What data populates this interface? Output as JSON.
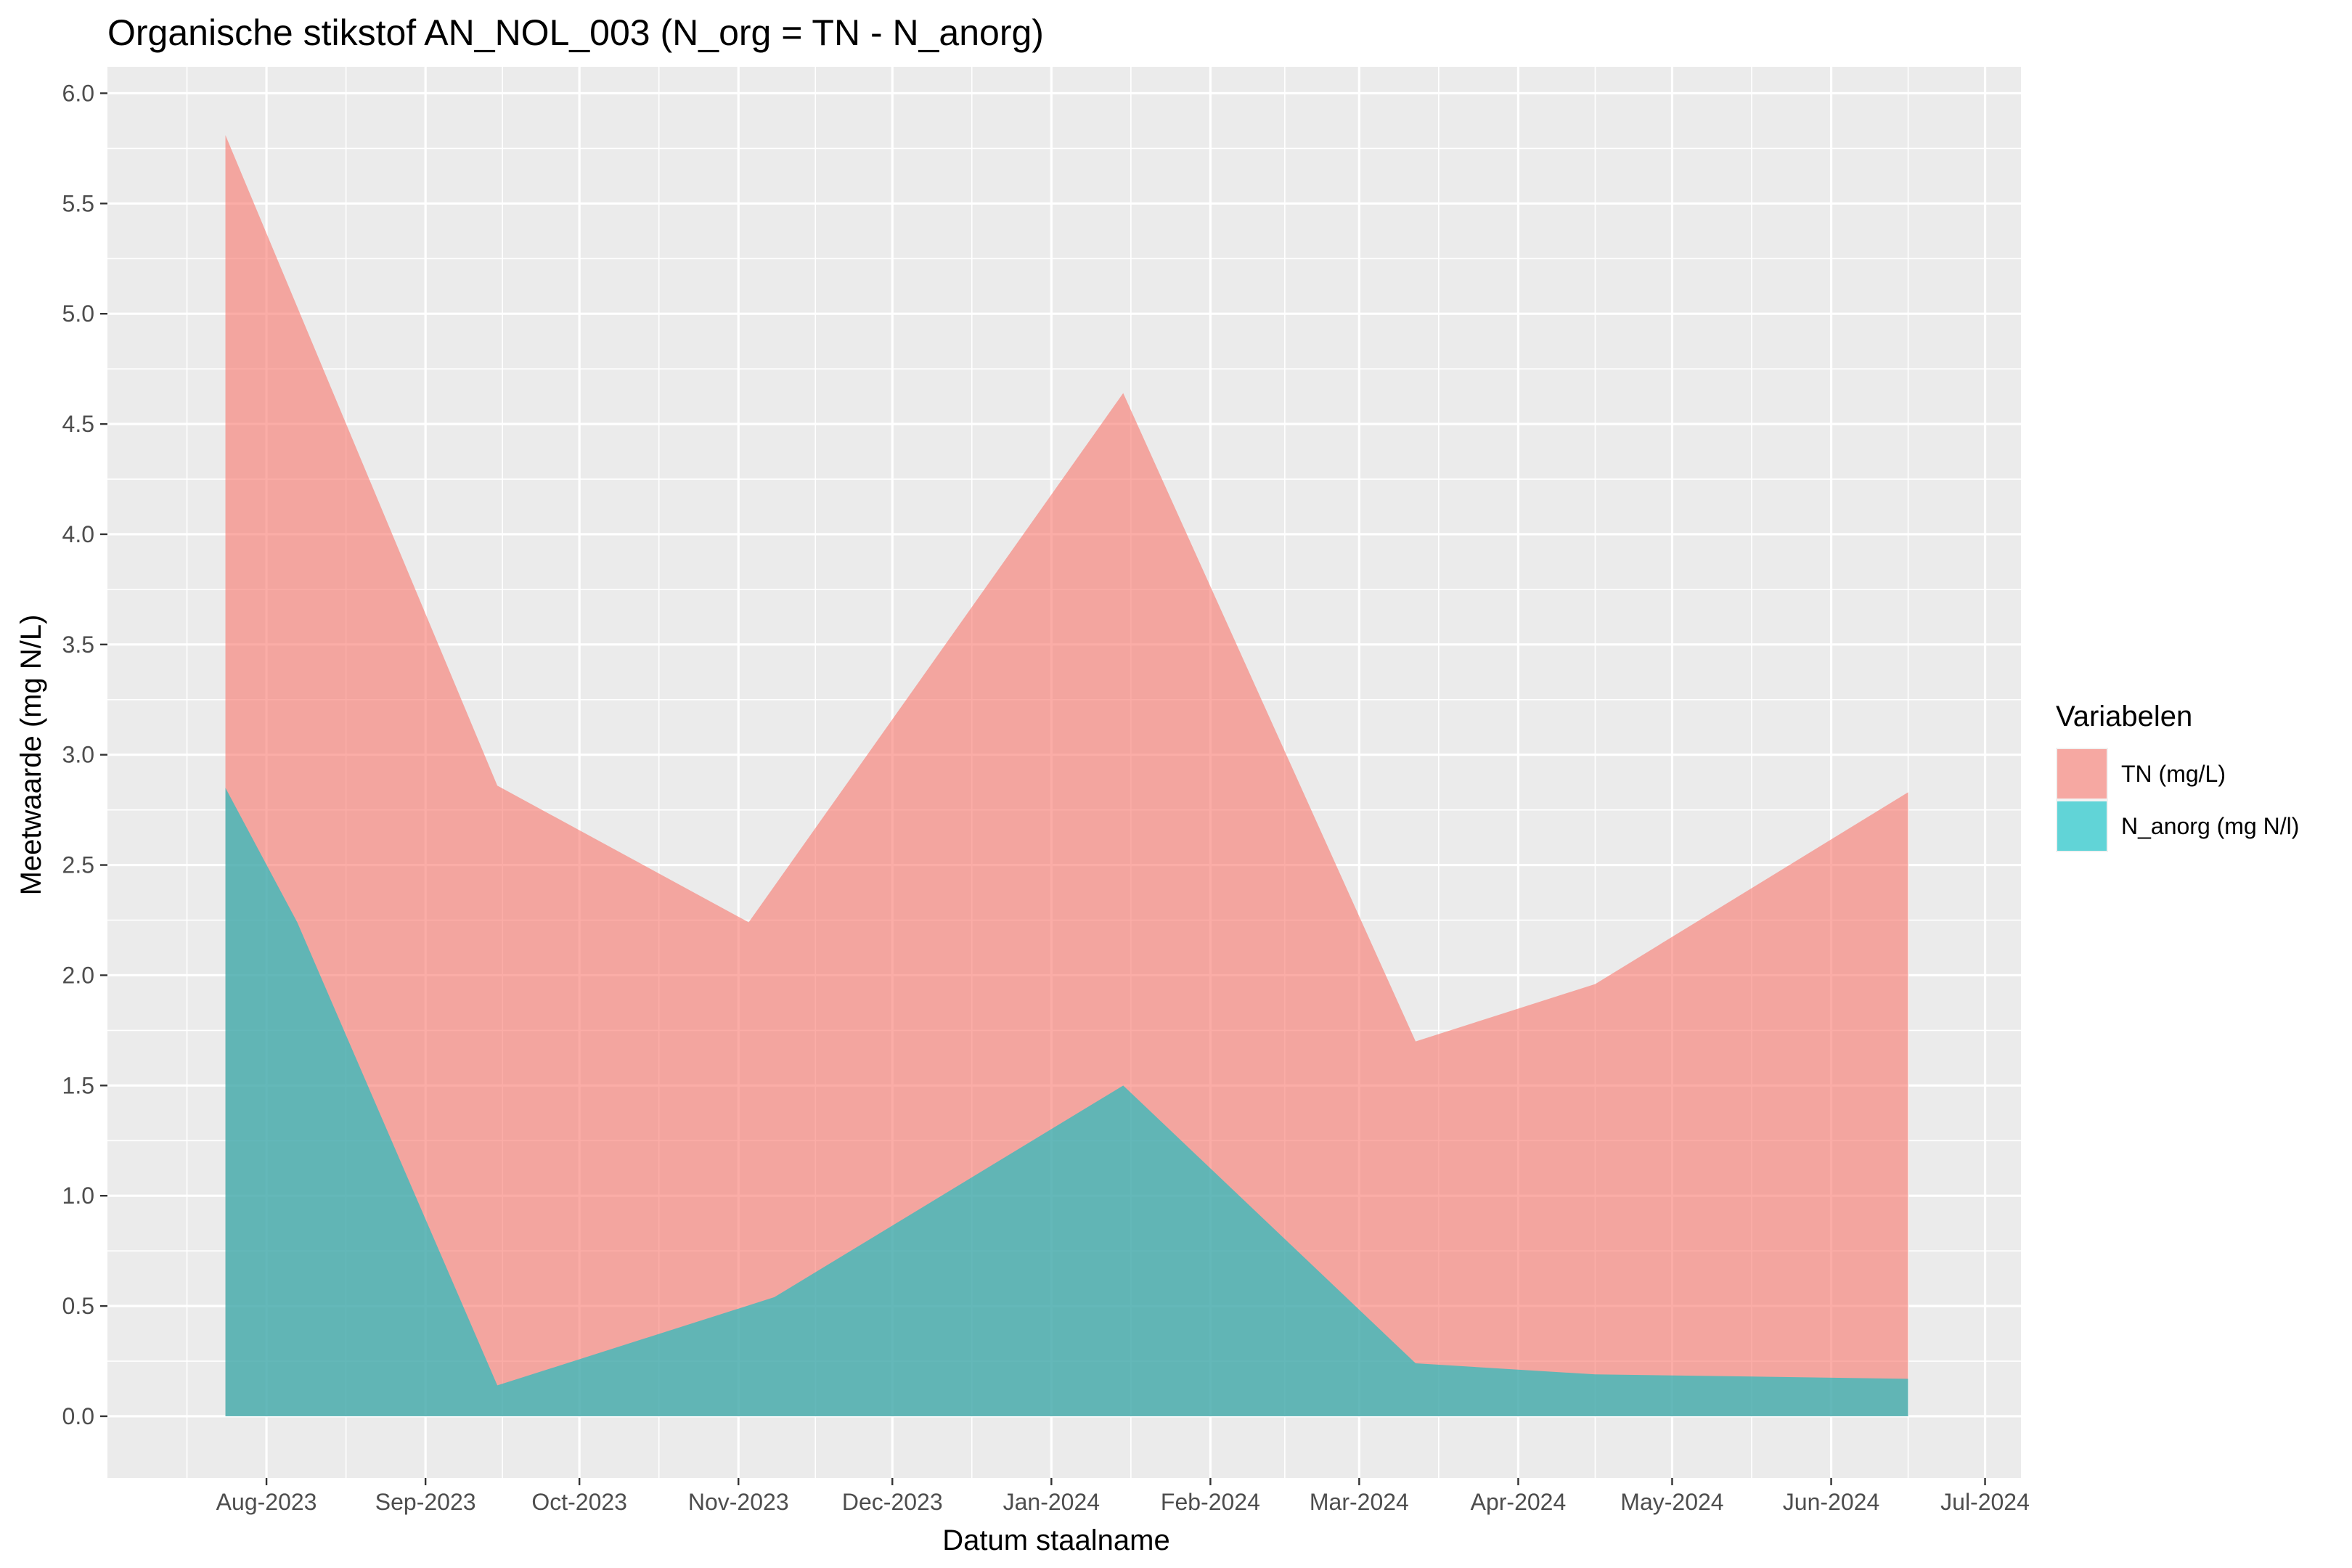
{
  "chart_data": {
    "type": "area",
    "title": "Organische stikstof AN_NOL_003 (N_org = TN - N_anorg)",
    "xlabel": "Datum staalname",
    "ylabel": "Meetwaarde (mg N/L)",
    "ylim": [
      -0.28,
      6.12
    ],
    "xlim": [
      "2023-07-01",
      "2024-07-08"
    ],
    "y_ticks": [
      "0.0",
      "0.5",
      "1.0",
      "1.5",
      "2.0",
      "2.5",
      "3.0",
      "3.5",
      "4.0",
      "4.5",
      "5.0",
      "5.5",
      "6.0"
    ],
    "x_ticks": [
      {
        "date": "2023-08-01",
        "label": "Aug-2023"
      },
      {
        "date": "2023-09-01",
        "label": "Sep-2023"
      },
      {
        "date": "2023-10-01",
        "label": "Oct-2023"
      },
      {
        "date": "2023-11-01",
        "label": "Nov-2023"
      },
      {
        "date": "2023-12-01",
        "label": "Dec-2023"
      },
      {
        "date": "2024-01-01",
        "label": "Jan-2024"
      },
      {
        "date": "2024-02-01",
        "label": "Feb-2024"
      },
      {
        "date": "2024-03-01",
        "label": "Mar-2024"
      },
      {
        "date": "2024-04-01",
        "label": "Apr-2024"
      },
      {
        "date": "2024-05-01",
        "label": "May-2024"
      },
      {
        "date": "2024-06-01",
        "label": "Jun-2024"
      },
      {
        "date": "2024-07-01",
        "label": "Jul-2024"
      }
    ],
    "legend": {
      "title": "Variabelen",
      "position": "right"
    },
    "grid": true,
    "series": [
      {
        "name": "TN (mg/L)",
        "color": "#F8766D",
        "points": [
          {
            "date": "2023-07-24",
            "value": 5.81
          },
          {
            "date": "2023-09-15",
            "value": 2.86
          },
          {
            "date": "2023-11-03",
            "value": 2.24
          },
          {
            "date": "2024-01-15",
            "value": 4.64
          },
          {
            "date": "2024-03-12",
            "value": 1.7
          },
          {
            "date": "2024-04-16",
            "value": 1.96
          },
          {
            "date": "2024-06-16",
            "value": 2.83
          }
        ]
      },
      {
        "name": "N_anorg (mg N/l)",
        "color": "#00BFC4",
        "points": [
          {
            "date": "2023-07-24",
            "value": 2.85
          },
          {
            "date": "2023-08-07",
            "value": 2.24
          },
          {
            "date": "2023-09-15",
            "value": 0.14
          },
          {
            "date": "2023-11-08",
            "value": 0.54
          },
          {
            "date": "2024-01-15",
            "value": 1.5
          },
          {
            "date": "2024-03-12",
            "value": 0.24
          },
          {
            "date": "2024-04-16",
            "value": 0.19
          },
          {
            "date": "2024-06-16",
            "value": 0.17
          }
        ]
      }
    ]
  }
}
